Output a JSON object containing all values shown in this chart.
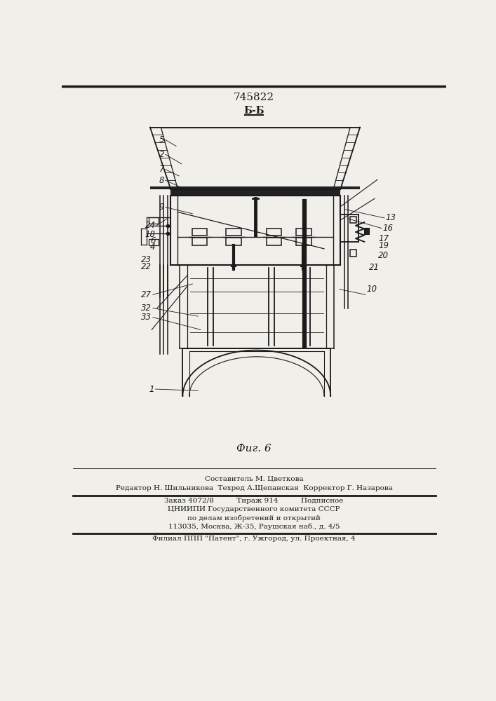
{
  "patent_number": "745822",
  "section_label": "Б-Б",
  "figure_label": "Фиг. 6",
  "footer_lines": [
    "Составитель М. Цветкова",
    "Редактор Н. Шильникова  Техред А.Щепанская  Корректор Г. Назарова",
    "Заказ 4072/8          Тираж 914          Подписное",
    "ЦНИИПИ Государственного комитета СССР",
    "по делам изобретений и открытий",
    "113035, Москва, Ж-35, Раушская наб., д. 4/5",
    "Филиал ППП \"Патент\", г. Ужгород, ул. Проектная, 4"
  ],
  "bg_color": "#f0efea",
  "line_color": "#1a1a1a"
}
